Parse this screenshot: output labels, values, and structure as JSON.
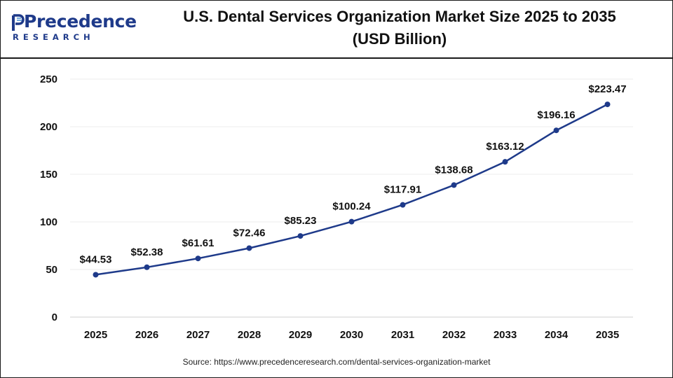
{
  "brand": {
    "name": "Precedence",
    "subname": "RESEARCH",
    "color": "#1e3a8a"
  },
  "chart_data": {
    "type": "line",
    "title_line1": "U.S. Dental Services Organization Market Size 2025 to 2035",
    "title_line2": "(USD Billion)",
    "xlabel": "",
    "ylabel": "",
    "x": [
      "2025",
      "2026",
      "2027",
      "2028",
      "2029",
      "2030",
      "2031",
      "2032",
      "2033",
      "2034",
      "2035"
    ],
    "values": [
      44.53,
      52.38,
      61.61,
      72.46,
      85.23,
      100.24,
      117.91,
      138.68,
      163.12,
      196.16,
      223.47
    ],
    "data_labels": [
      "$44.53",
      "$52.38",
      "$61.61",
      "$72.46",
      "$85.23",
      "$100.24",
      "$117.91",
      "$138.68",
      "$163.12",
      "$196.16",
      "$223.47"
    ],
    "yticks": [
      "0",
      "50",
      "100",
      "150",
      "200",
      "250"
    ],
    "ylim": [
      0,
      250
    ],
    "grid": true,
    "legend": "none",
    "line_color": "#1e3a8a"
  },
  "source_text": "Source: https://www.precedenceresearch.com/dental-services-organization-market"
}
